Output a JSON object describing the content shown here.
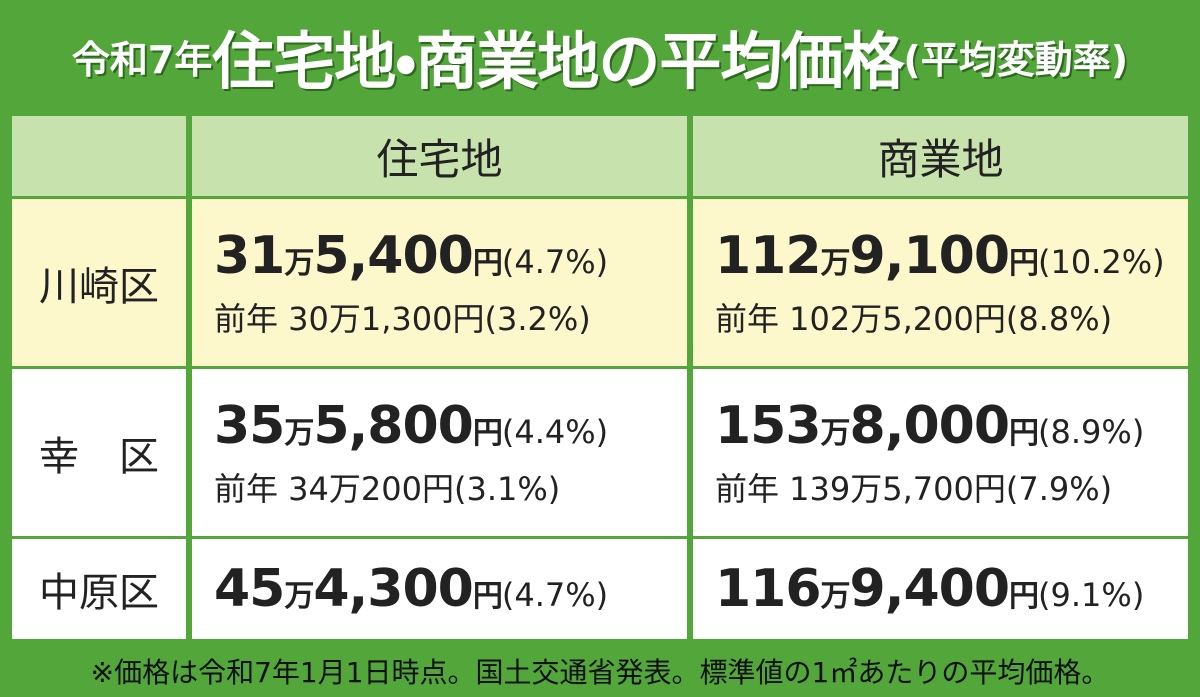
{
  "title": {
    "prefix": "令和7年",
    "main": "住宅地・商業地の平均価格",
    "suffix": "(平均変動率)"
  },
  "table": {
    "header": [
      "住宅地",
      "商業地"
    ],
    "rows": [
      {
        "label": "川崎区",
        "cells": [
          {
            "price": "31万5,400円",
            "rate": "(4.7%)",
            "previous": "前年 30万1,300円(3.2%)"
          },
          {
            "price": "112万9,100円",
            "rate": "(10.2%)",
            "previous": "前年 102万5,200円(8.8%)"
          }
        ]
      },
      {
        "label": "幸　区",
        "cells": [
          {
            "price": "35万5,800円",
            "rate": "(4.4%)",
            "previous": "前年 34万200円(3.1%)"
          },
          {
            "price": "153万8,000円",
            "rate": "(8.9%)",
            "previous": "前年 139万5,700円(7.9%)"
          }
        ]
      },
      {
        "label": "中原区",
        "cells": [
          {
            "price": "45万4,300円",
            "rate": "(4.7%)"
          },
          {
            "price": "116万9,400円",
            "rate": "(9.1%)"
          }
        ]
      }
    ]
  },
  "footnote": "※価格は令和7年1月1日時点。国土交通省発表。標準値の1㎡あたりの平均価格。"
}
